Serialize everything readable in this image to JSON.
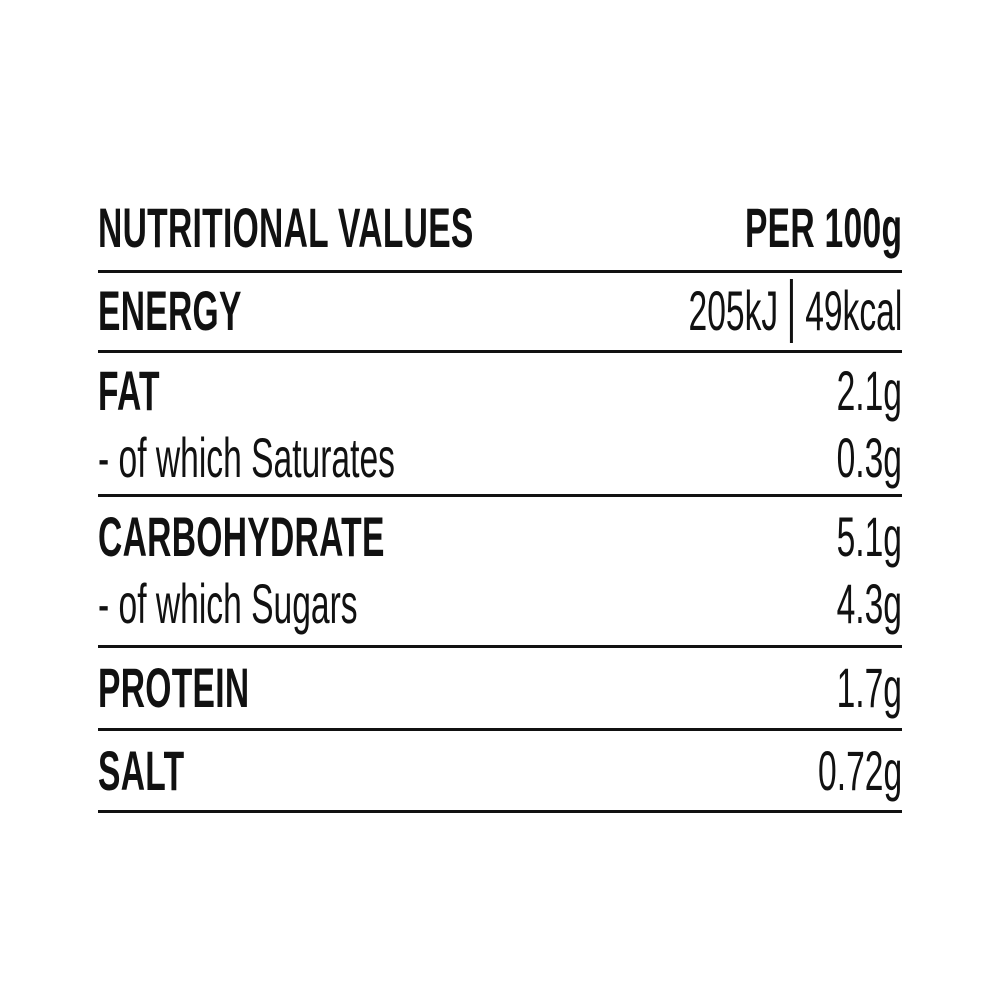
{
  "label": {
    "header": {
      "title": "NUTRITIONAL VALUES",
      "column": "PER 100g"
    },
    "energy": {
      "label": "ENERGY",
      "kj": "205kJ",
      "kcal": "49kcal"
    },
    "rows": [
      {
        "label": "FAT",
        "value": "2.1g"
      },
      {
        "label": "- of which Saturates",
        "value": "0.3g"
      },
      {
        "label": "CARBOHYDRATE",
        "value": "5.1g"
      },
      {
        "label": "- of which Sugars",
        "value": "4.3g"
      },
      {
        "label": "PROTEIN",
        "value": "1.7g"
      },
      {
        "label": "SALT",
        "value": "0.72g"
      }
    ],
    "colors": {
      "text": "#111111",
      "rule": "#111111",
      "background": "#ffffff"
    }
  }
}
